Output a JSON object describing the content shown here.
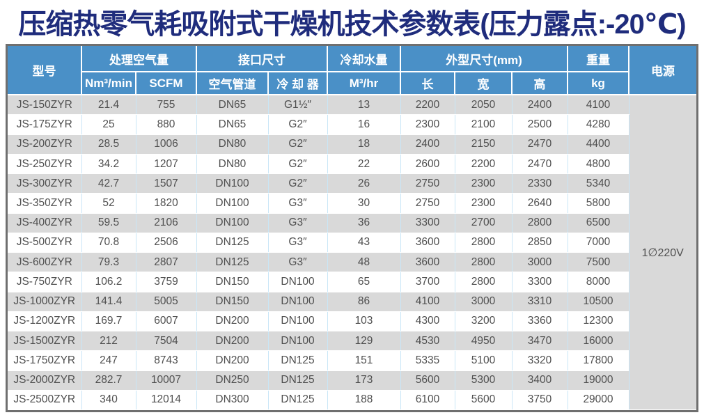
{
  "title": "压缩热零气耗吸附式干燥机技术参数表(压力露点:-20℃)",
  "colors": {
    "header_bg": "#4a90c7",
    "title_color": "#1f2c7c",
    "stripe": "#d9d9d9",
    "grid": "#c9e6f7",
    "outer_border": "#6f6f6f",
    "text": "#4f4f4f",
    "header_text": "#ffffff"
  },
  "table": {
    "headers": {
      "model": "型号",
      "air_group": "处理空气量",
      "air_sub": [
        "Nm³/min",
        "SCFM"
      ],
      "port_group": "接口尺寸",
      "port_sub": [
        "空气管道",
        "冷 却 器"
      ],
      "water_group": "冷却水量",
      "water_sub": "M³/hr",
      "dims_group": "外型尺寸(mm)",
      "dims_sub": [
        "长",
        "宽",
        "高"
      ],
      "weight_group": "重量",
      "weight_sub": "kg",
      "power": "电源"
    },
    "power_value": "1∅220V",
    "rows": [
      [
        "JS-150ZYR",
        "21.4",
        "755",
        "DN65",
        "G1½″",
        "13",
        "2200",
        "2050",
        "2400",
        "4100"
      ],
      [
        "JS-175ZYR",
        "25",
        "880",
        "DN65",
        "G2″",
        "16",
        "2300",
        "2100",
        "2500",
        "4280"
      ],
      [
        "JS-200ZYR",
        "28.5",
        "1006",
        "DN80",
        "G2″",
        "18",
        "2400",
        "2150",
        "2470",
        "4400"
      ],
      [
        "JS-250ZYR",
        "34.2",
        "1207",
        "DN80",
        "G2″",
        "22",
        "2600",
        "2200",
        "2470",
        "4800"
      ],
      [
        "JS-300ZYR",
        "42.7",
        "1507",
        "DN100",
        "G2″",
        "26",
        "2750",
        "2300",
        "2330",
        "5340"
      ],
      [
        "JS-350ZYR",
        "52",
        "1820",
        "DN100",
        "G3″",
        "30",
        "2750",
        "2300",
        "2640",
        "5800"
      ],
      [
        "JS-400ZYR",
        "59.5",
        "2106",
        "DN100",
        "G3″",
        "36",
        "3300",
        "2700",
        "2800",
        "6500"
      ],
      [
        "JS-500ZYR",
        "70.8",
        "2506",
        "DN125",
        "G3″",
        "43",
        "3600",
        "2800",
        "2850",
        "7000"
      ],
      [
        "JS-600ZYR",
        "79.3",
        "2807",
        "DN125",
        "G3″",
        "48",
        "3600",
        "2800",
        "3000",
        "7500"
      ],
      [
        "JS-750ZYR",
        "106.2",
        "3759",
        "DN150",
        "DN100",
        "65",
        "3700",
        "2800",
        "3300",
        "8000"
      ],
      [
        "JS-1000ZYR",
        "141.4",
        "5005",
        "DN150",
        "DN100",
        "86",
        "4100",
        "3000",
        "3310",
        "10500"
      ],
      [
        "JS-1200ZYR",
        "169.7",
        "6007",
        "DN200",
        "DN100",
        "103",
        "4300",
        "3200",
        "3360",
        "12300"
      ],
      [
        "JS-1500ZYR",
        "212",
        "7504",
        "DN200",
        "DN100",
        "129",
        "4530",
        "4950",
        "3470",
        "16000"
      ],
      [
        "JS-1750ZYR",
        "247",
        "8743",
        "DN200",
        "DN125",
        "151",
        "5335",
        "5100",
        "3320",
        "17800"
      ],
      [
        "JS-2000ZYR",
        "282.7",
        "10007",
        "DN250",
        "DN125",
        "173",
        "5600",
        "5300",
        "3400",
        "19000"
      ],
      [
        "JS-2500ZYR",
        "340",
        "12014",
        "DN300",
        "DN125",
        "188",
        "6100",
        "5600",
        "3750",
        "29000"
      ]
    ]
  }
}
